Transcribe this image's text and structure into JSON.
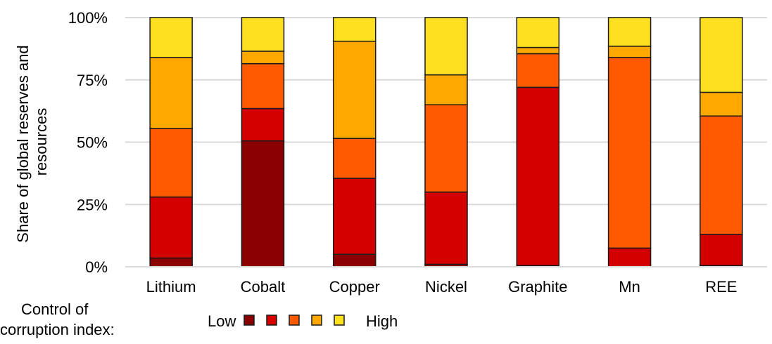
{
  "chart_data": {
    "type": "bar",
    "stacked": true,
    "ylabel": "Share of global reserves and resources",
    "ylabel_lines": [
      "Share of global reserves and",
      "resources"
    ],
    "xlabel": "",
    "ylim": [
      0,
      100
    ],
    "yticks": [
      0,
      25,
      50,
      75,
      100
    ],
    "ytick_labels": [
      "0%",
      "25%",
      "50%",
      "75%",
      "100%"
    ],
    "grid": true,
    "categories": [
      "Lithium",
      "Cobalt",
      "Copper",
      "Nickel",
      "Graphite",
      "Mn",
      "REE"
    ],
    "series": [
      {
        "color": "#8b0000",
        "values": [
          3.5,
          50.5,
          5,
          1,
          0.5,
          0,
          0.5
        ]
      },
      {
        "color": "#d40000",
        "values": [
          24.5,
          13,
          30.5,
          29,
          71.5,
          7.5,
          12.5
        ]
      },
      {
        "color": "#ff5a00",
        "values": [
          27.5,
          18,
          16,
          35,
          13.5,
          76.5,
          47.5
        ]
      },
      {
        "color": "#ffa800",
        "values": [
          28.5,
          5,
          39,
          12,
          2.5,
          4.5,
          9.5
        ]
      },
      {
        "color": "#ffe020",
        "values": [
          16,
          13.5,
          9.5,
          23,
          12,
          11.5,
          30
        ]
      }
    ],
    "legend": {
      "title_lines": [
        "Control of",
        "corruption index:"
      ],
      "low_label": "Low",
      "high_label": "High",
      "placement": "bottom-left"
    }
  }
}
